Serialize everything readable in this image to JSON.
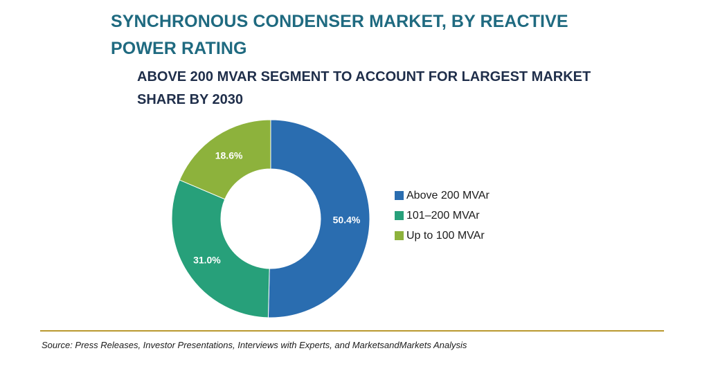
{
  "title": "SYNCHRONOUS CONDENSER MARKET, BY REACTIVE POWER RATING",
  "subtitle": "ABOVE 200 MVAR SEGMENT TO ACCOUNT FOR LARGEST MARKET SHARE BY 2030",
  "source": "Source: Press Releases, Investor Presentations, Interviews with Experts, and MarketsandMarkets Analysis",
  "colors": {
    "title": "#1f6a80",
    "subtitle": "#1f2e4a",
    "divider": "#b9982e"
  },
  "chart_data": {
    "type": "pie",
    "style": "donut",
    "title": "SYNCHRONOUS CONDENSER MARKET, BY REACTIVE POWER RATING",
    "subtitle": "ABOVE 200 MVAR SEGMENT TO ACCOUNT FOR LARGEST MARKET SHARE BY 2030",
    "legend_position": "right",
    "slices": [
      {
        "label": "Above 200 MVAr",
        "value": 50.4,
        "display": "50.4%",
        "color": "#2a6db0"
      },
      {
        "label": "101–200 MVAr",
        "value": 31.0,
        "display": "31.0%",
        "color": "#27a07a"
      },
      {
        "label": "Up to 100 MVAr",
        "value": 18.6,
        "display": "18.6%",
        "color": "#8db23c"
      }
    ]
  }
}
